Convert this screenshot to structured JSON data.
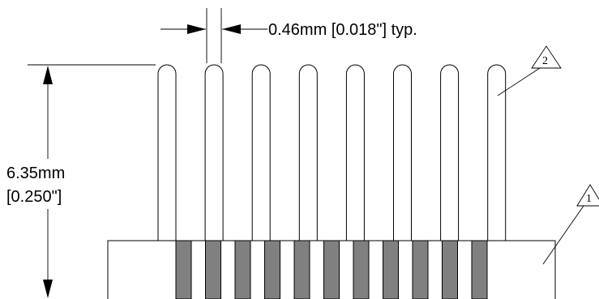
{
  "title": "",
  "dimensions": {
    "pin_width": "0.46mm  [0.018\"] typ.",
    "pin_height_mm": "6.35mm",
    "pin_height_in": "[0.250\"]"
  },
  "callouts": [
    {
      "id": "1",
      "label": "1"
    },
    {
      "id": "2",
      "label": "2"
    }
  ],
  "counts": {
    "visible_pins": 8,
    "shaded_slots": 11
  },
  "colors": {
    "line": "#000000",
    "slot_fill": "#808080",
    "background": "#ffffff"
  }
}
